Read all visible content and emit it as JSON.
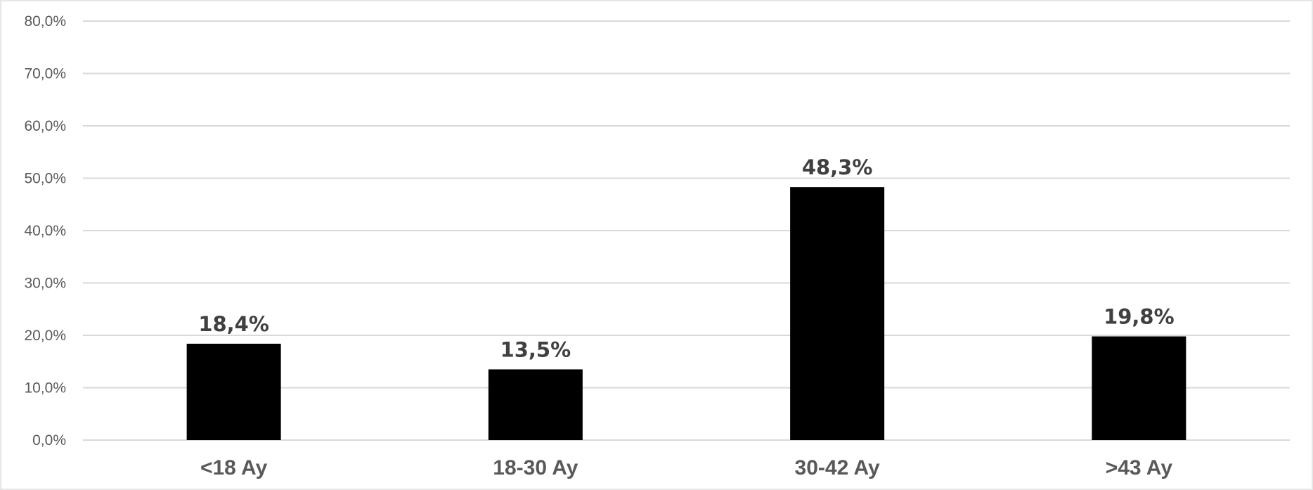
{
  "chart_data": {
    "type": "bar",
    "categories": [
      "<18 Ay",
      "18-30 Ay",
      "30-42 Ay",
      ">43 Ay"
    ],
    "values": [
      18.4,
      13.5,
      48.3,
      19.8
    ],
    "data_labels": [
      "18,4%",
      "13,5%",
      "48,3%",
      "19,8%"
    ],
    "y_ticks": [
      0,
      10,
      20,
      30,
      40,
      50,
      60,
      70,
      80
    ],
    "y_tick_labels": [
      "0,0%",
      "10,0%",
      "20,0%",
      "30,0%",
      "40,0%",
      "50,0%",
      "60,0%",
      "70,0%",
      "80,0%"
    ],
    "ylim": [
      0,
      80
    ],
    "grid": true,
    "legend": "none",
    "bar_color": "#000000",
    "gridline_color": "#d9d9d9",
    "label_color": "#404040",
    "tick_color": "#595959"
  }
}
